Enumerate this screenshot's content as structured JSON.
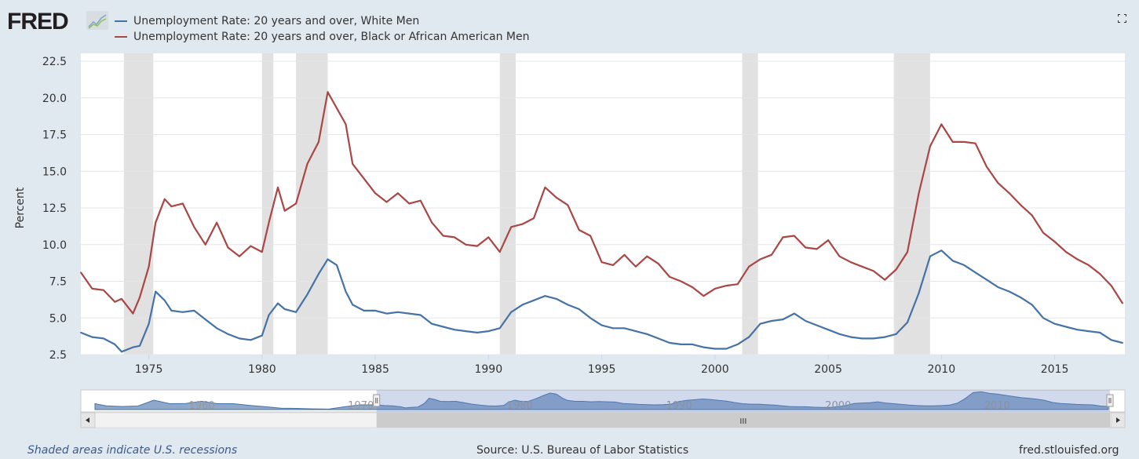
{
  "header": {
    "logo_text": "FRED",
    "legend": [
      {
        "label": "Unemployment Rate: 20 years and over, White Men",
        "color": "#4572a7"
      },
      {
        "label": "Unemployment Rate: 20 years and over, Black or African American Men",
        "color": "#aa4643"
      }
    ],
    "expand_icon": "fullscreen-icon"
  },
  "chart_data": {
    "type": "line",
    "ylabel": "Percent",
    "xlabel": "",
    "ylim": [
      2.5,
      22.5
    ],
    "xlim": [
      1972.0,
      2018.1
    ],
    "y_ticks": [
      "2.5",
      "5.0",
      "7.5",
      "10.0",
      "12.5",
      "15.0",
      "17.5",
      "20.0",
      "22.5"
    ],
    "x_ticks": [
      "1975",
      "1980",
      "1985",
      "1990",
      "1995",
      "2000",
      "2005",
      "2010",
      "2015"
    ],
    "grid": true,
    "legend_placement": "top-left",
    "recessions": [
      [
        1973.9,
        1975.2
      ],
      [
        1980.0,
        1980.5
      ],
      [
        1981.5,
        1982.9
      ],
      [
        1990.5,
        1991.2
      ],
      [
        2001.2,
        2001.9
      ],
      [
        2007.9,
        2009.5
      ]
    ],
    "recession_color": "#e1e1e1",
    "x": [
      1972.0,
      1972.5,
      1973.0,
      1973.5,
      1973.8,
      1974.3,
      1974.6,
      1975.0,
      1975.3,
      1975.7,
      1976.0,
      1976.5,
      1977.0,
      1977.5,
      1978.0,
      1978.5,
      1979.0,
      1979.5,
      1980.0,
      1980.3,
      1980.7,
      1981.0,
      1981.5,
      1982.0,
      1982.5,
      1982.9,
      1983.3,
      1983.7,
      1984.0,
      1984.5,
      1985.0,
      1985.5,
      1986.0,
      1986.5,
      1987.0,
      1987.5,
      1988.0,
      1988.5,
      1989.0,
      1989.5,
      1990.0,
      1990.5,
      1991.0,
      1991.5,
      1992.0,
      1992.5,
      1993.0,
      1993.5,
      1994.0,
      1994.5,
      1995.0,
      1995.5,
      1996.0,
      1996.5,
      1997.0,
      1997.5,
      1998.0,
      1998.5,
      1999.0,
      1999.5,
      2000.0,
      2000.5,
      2001.0,
      2001.5,
      2002.0,
      2002.5,
      2003.0,
      2003.5,
      2004.0,
      2004.5,
      2005.0,
      2005.5,
      2006.0,
      2006.5,
      2007.0,
      2007.5,
      2008.0,
      2008.5,
      2009.0,
      2009.5,
      2010.0,
      2010.5,
      2011.0,
      2011.5,
      2012.0,
      2012.5,
      2013.0,
      2013.5,
      2014.0,
      2014.5,
      2015.0,
      2015.5,
      2016.0,
      2016.5,
      2017.0,
      2017.5,
      2018.0
    ],
    "series": [
      {
        "name": "Unemployment Rate: 20 years and over, White Men",
        "color": "#4572a7",
        "values": [
          4.0,
          3.7,
          3.6,
          3.2,
          2.7,
          3.0,
          3.1,
          4.6,
          6.8,
          6.2,
          5.5,
          5.4,
          5.5,
          4.9,
          4.3,
          3.9,
          3.6,
          3.5,
          3.8,
          5.2,
          6.0,
          5.6,
          5.4,
          6.6,
          8.0,
          9.0,
          8.6,
          6.8,
          5.9,
          5.5,
          5.5,
          5.3,
          5.4,
          5.3,
          5.2,
          4.6,
          4.4,
          4.2,
          4.1,
          4.0,
          4.1,
          4.3,
          5.4,
          5.9,
          6.2,
          6.5,
          6.3,
          5.9,
          5.6,
          5.0,
          4.5,
          4.3,
          4.3,
          4.1,
          3.9,
          3.6,
          3.3,
          3.2,
          3.2,
          3.0,
          2.9,
          2.9,
          3.2,
          3.7,
          4.6,
          4.8,
          4.9,
          5.3,
          4.8,
          4.5,
          4.2,
          3.9,
          3.7,
          3.6,
          3.6,
          3.7,
          3.9,
          4.7,
          6.7,
          9.2,
          9.6,
          8.9,
          8.6,
          8.1,
          7.6,
          7.1,
          6.8,
          6.4,
          5.9,
          5.0,
          4.6,
          4.4,
          4.2,
          4.1,
          4.0,
          3.5,
          3.3
        ]
      },
      {
        "name": "Unemployment Rate: 20 years and over, Black or African American Men",
        "color": "#aa4643",
        "values": [
          8.1,
          7.0,
          6.9,
          6.1,
          6.3,
          5.3,
          6.4,
          8.5,
          11.5,
          13.1,
          12.6,
          12.8,
          11.2,
          10.0,
          11.5,
          9.8,
          9.2,
          9.9,
          9.5,
          11.5,
          13.9,
          12.3,
          12.8,
          15.5,
          17.0,
          20.4,
          19.3,
          18.2,
          15.5,
          14.5,
          13.5,
          12.9,
          13.5,
          12.8,
          13.0,
          11.5,
          10.6,
          10.5,
          10.0,
          9.9,
          10.5,
          9.5,
          11.2,
          11.4,
          11.8,
          13.9,
          13.2,
          12.7,
          11.0,
          10.6,
          8.8,
          8.6,
          9.3,
          8.5,
          9.2,
          8.7,
          7.8,
          7.5,
          7.1,
          6.5,
          7.0,
          7.2,
          7.3,
          8.5,
          9.0,
          9.3,
          10.5,
          10.6,
          9.8,
          9.7,
          10.3,
          9.2,
          8.8,
          8.5,
          8.2,
          7.6,
          8.3,
          9.5,
          13.5,
          16.7,
          18.2,
          17.0,
          17.0,
          16.9,
          15.3,
          14.2,
          13.5,
          12.7,
          12.0,
          10.8,
          10.2,
          9.5,
          9.0,
          8.6,
          8.0,
          7.2,
          6.0
        ]
      }
    ],
    "navigator": {
      "labels": [
        "1960",
        "1970",
        "1980",
        "1990",
        "2000",
        "2010"
      ],
      "range": [
        1954.3,
        2018.1
      ],
      "selected": [
        1972.0,
        2018.1
      ],
      "early_x": [
        1954.3,
        1955,
        1956,
        1957,
        1958,
        1959,
        1960,
        1961,
        1962,
        1963,
        1964,
        1965,
        1966,
        1967,
        1968,
        1969,
        1970,
        1971
      ],
      "early_values": [
        4.5,
        3.6,
        3.3,
        3.5,
        6.0,
        4.5,
        4.6,
        5.5,
        4.5,
        4.5,
        3.8,
        3.2,
        2.6,
        2.5,
        2.3,
        2.2,
        3.2,
        4.0
      ]
    }
  },
  "footer": {
    "recession_note": "Shaded areas indicate U.S. recessions",
    "source": "Source: U.S. Bureau of Labor Statistics",
    "site": "fred.stlouisfed.org"
  }
}
